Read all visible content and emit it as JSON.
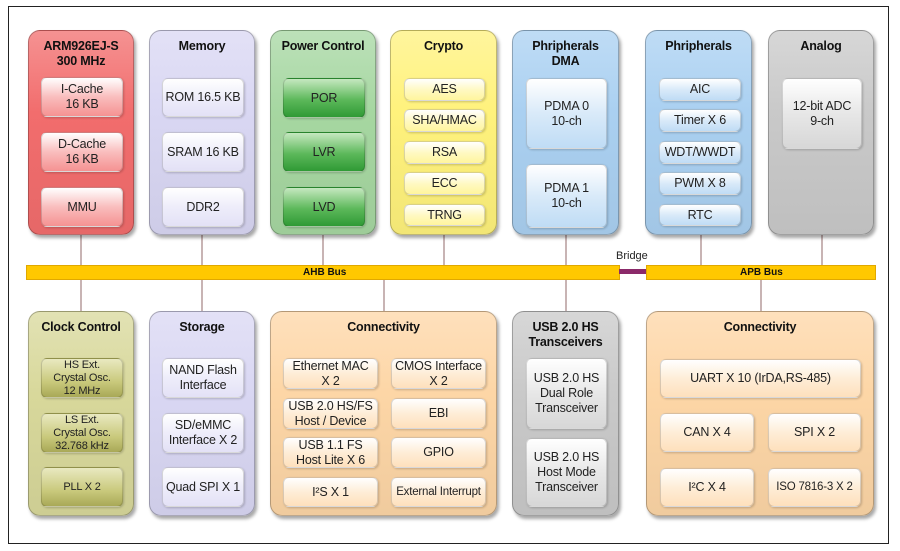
{
  "colors": {
    "cpu": "#f26d6d",
    "memory": "#d9d7f3",
    "power": "#a6d7a1",
    "crypto": "#fff27c",
    "dma": "#aad0f1",
    "peripherals": "#aad0f1",
    "analog": "#c9c9c9",
    "clock": "#d8d89b",
    "storage": "#d9d7f3",
    "connectivity": "#fdd6a6",
    "usb": "#c9c9c9",
    "bus": "#ffc800",
    "bridge": "#8b2a6a"
  },
  "blocks": [
    {
      "id": "cpu",
      "title": "ARM926EJ-S\n300 MHz",
      "items": [
        "I-Cache\n16 KB",
        "D-Cache\n16 KB",
        "MMU"
      ]
    },
    {
      "id": "memory",
      "title": "Memory",
      "items": [
        "ROM 16.5 KB",
        "SRAM 16 KB",
        "DDR2"
      ]
    },
    {
      "id": "power",
      "title": "Power Control",
      "items": [
        "POR",
        "LVR",
        "LVD"
      ]
    },
    {
      "id": "crypto",
      "title": "Crypto",
      "items": [
        "AES",
        "SHA/HMAC",
        "RSA",
        "ECC",
        "TRNG"
      ]
    },
    {
      "id": "dma",
      "title": "Phripherals\nDMA",
      "items": [
        "PDMA 0\n10-ch",
        "PDMA 1\n10-ch"
      ]
    },
    {
      "id": "peripherals",
      "title": "Phripherals",
      "items": [
        "AIC",
        "Timer X 6",
        "WDT/WWDT",
        "PWM X 8",
        "RTC"
      ]
    },
    {
      "id": "analog",
      "title": "Analog",
      "items": [
        "12-bit ADC\n9-ch"
      ]
    },
    {
      "id": "clock",
      "title": "Clock Control",
      "items": [
        "HS Ext.\nCrystal Osc.\n12 MHz",
        "LS Ext.\nCrystal Osc.\n32.768 kHz",
        "PLL X 2"
      ]
    },
    {
      "id": "storage",
      "title": "Storage",
      "items": [
        "NAND Flash\nInterface",
        "SD/eMMC\nInterface X 2",
        "Quad SPI X 1"
      ]
    },
    {
      "id": "connectivity",
      "title": "Connectivity",
      "items": [
        "Ethernet MAC\nX 2",
        "CMOS Interface\nX 2",
        "USB 2.0 HS/FS\nHost / Device",
        "EBI",
        "USB 1.1 FS\nHost Lite X 6",
        "GPIO",
        "I²S X 1",
        "External Interrupt"
      ]
    },
    {
      "id": "usb",
      "title": "USB 2.0 HS\nTransceivers",
      "items": [
        "USB 2.0 HS\nDual Role\nTransceiver",
        "USB 2.0 HS\nHost Mode\nTransceiver"
      ]
    },
    {
      "id": "connectivity2",
      "title": "Connectivity",
      "items": [
        "UART X 10 (IrDA,RS-485)",
        "CAN X 4",
        "SPI X 2",
        "I²C X 4",
        "ISO 7816-3 X 2"
      ]
    }
  ],
  "buses": {
    "ahb": "AHB Bus",
    "apb": "APB Bus",
    "bridge": "Bridge"
  }
}
